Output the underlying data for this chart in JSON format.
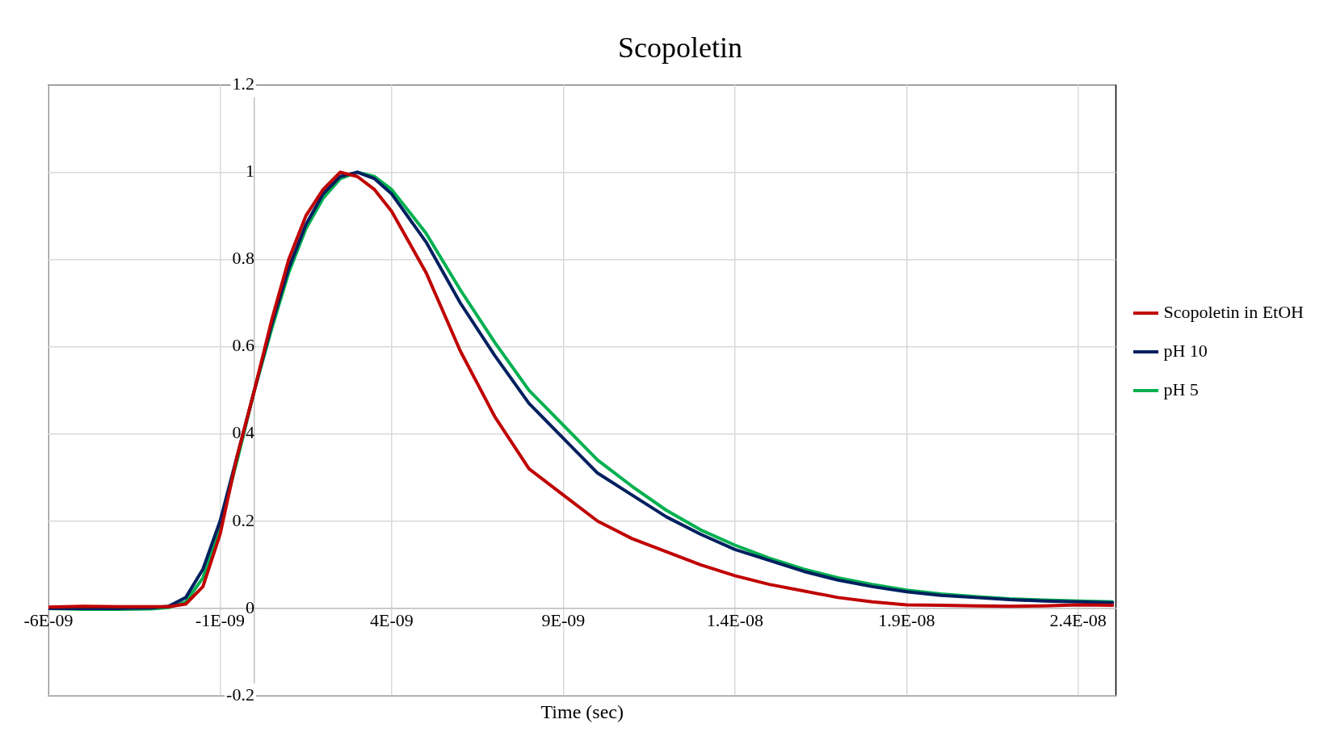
{
  "chart_data": {
    "type": "line",
    "title": "Scopoletin",
    "xlabel": "Time (sec)",
    "x": [
      -6e-09,
      -5e-09,
      -4e-09,
      -3e-09,
      -2.5e-09,
      -2e-09,
      -1.5e-09,
      -1e-09,
      -5e-10,
      0,
      5e-10,
      1e-09,
      1.5e-09,
      2e-09,
      2.5e-09,
      3e-09,
      3.5e-09,
      4e-09,
      5e-09,
      6e-09,
      7e-09,
      8e-09,
      9e-09,
      1e-08,
      1.1e-08,
      1.2e-08,
      1.3e-08,
      1.4e-08,
      1.5e-08,
      1.6e-08,
      1.7e-08,
      1.8e-08,
      1.9e-08,
      2e-08,
      2.1e-08,
      2.2e-08,
      2.3e-08,
      2.4e-08,
      2.5e-08
    ],
    "series": [
      {
        "name": "Scopoletin in EtOH",
        "color": "#c00000",
        "values": [
          0.003,
          0.005,
          0.004,
          0.004,
          0.004,
          0.01,
          0.05,
          0.17,
          0.35,
          0.5,
          0.66,
          0.8,
          0.9,
          0.96,
          1.0,
          0.99,
          0.96,
          0.91,
          0.77,
          0.59,
          0.44,
          0.32,
          0.26,
          0.2,
          0.16,
          0.13,
          0.1,
          0.075,
          0.055,
          0.04,
          0.025,
          0.015,
          0.008,
          0.007,
          0.006,
          0.005,
          0.006,
          0.008,
          0.007
        ]
      },
      {
        "name": "pH 10",
        "color": "#002060",
        "values": [
          0.0,
          0.0,
          0.0,
          0.001,
          0.005,
          0.025,
          0.09,
          0.2,
          0.35,
          0.5,
          0.65,
          0.78,
          0.88,
          0.95,
          0.99,
          1.0,
          0.985,
          0.95,
          0.84,
          0.7,
          0.58,
          0.47,
          0.39,
          0.31,
          0.26,
          0.21,
          0.17,
          0.135,
          0.11,
          0.085,
          0.065,
          0.05,
          0.038,
          0.03,
          0.025,
          0.02,
          0.017,
          0.015,
          0.013
        ]
      },
      {
        "name": "pH 5",
        "color": "#00b050",
        "values": [
          0.0,
          -0.002,
          -0.002,
          -0.001,
          0.002,
          0.015,
          0.07,
          0.19,
          0.34,
          0.5,
          0.64,
          0.77,
          0.87,
          0.94,
          0.985,
          1.0,
          0.99,
          0.96,
          0.86,
          0.73,
          0.61,
          0.5,
          0.42,
          0.34,
          0.28,
          0.225,
          0.18,
          0.145,
          0.115,
          0.09,
          0.07,
          0.055,
          0.042,
          0.033,
          0.027,
          0.022,
          0.019,
          0.017,
          0.015
        ]
      }
    ],
    "xlim": [
      -6e-09,
      2.51e-08
    ],
    "xticks": [
      {
        "value": -6e-09,
        "label": "-6E-09"
      },
      {
        "value": -1e-09,
        "label": "-1E-09"
      },
      {
        "value": 4e-09,
        "label": "4E-09"
      },
      {
        "value": 9e-09,
        "label": "9E-09"
      },
      {
        "value": 1.4e-08,
        "label": "1.4E-08"
      },
      {
        "value": 1.9e-08,
        "label": "1.9E-08"
      },
      {
        "value": 2.4e-08,
        "label": "2.4E-08"
      }
    ],
    "ylim": [
      -0.2,
      1.2
    ],
    "yticks": [
      -0.2,
      0,
      0.2,
      0.4,
      0.6,
      0.8,
      1,
      1.2
    ],
    "grid": true,
    "legend": "right",
    "marker": "none",
    "line_style": "solid"
  }
}
